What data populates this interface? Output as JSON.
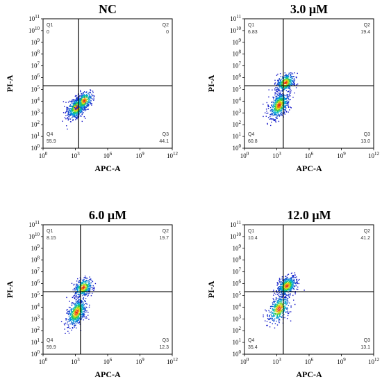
{
  "chart_data": [
    {
      "type": "scatter",
      "title": "NC",
      "xlabel": "APC-A",
      "ylabel": "PI-A",
      "x_scale": "log",
      "y_scale": "log",
      "xlim": [
        1,
        1000000000000.0
      ],
      "ylim": [
        1,
        100000000000.0
      ],
      "x_tick_labels": [
        "10^0",
        "10^3",
        "10^6",
        "10^9",
        "10^12"
      ],
      "y_tick_labels": [
        "10^0",
        "10^1",
        "10^2",
        "10^3",
        "10^4",
        "10^5",
        "10^6",
        "10^7",
        "10^8",
        "10^9",
        "10^10",
        "10^11"
      ],
      "gate": {
        "x": 2000,
        "y": 200000
      },
      "quadrants": [
        {
          "name": "Q1",
          "value": "0"
        },
        {
          "name": "Q2",
          "value": "0"
        },
        {
          "name": "Q3",
          "value": "44.1"
        },
        {
          "name": "Q4",
          "value": "55.9"
        }
      ],
      "clusters": [
        {
          "x": 1200,
          "y": 3000,
          "sx": 0.45,
          "sy": 0.45,
          "weight": 0.7
        },
        {
          "x": 6000,
          "y": 12000,
          "sx": 0.4,
          "sy": 0.4,
          "weight": 0.3
        }
      ]
    },
    {
      "type": "scatter",
      "title": "3.0 μM",
      "xlabel": "APC-A",
      "ylabel": "PI-A",
      "x_scale": "log",
      "y_scale": "log",
      "xlim": [
        1,
        1000000000000.0
      ],
      "ylim": [
        1,
        100000000000.0
      ],
      "x_tick_labels": [
        "10^0",
        "10^3",
        "10^6",
        "10^9",
        "10^12"
      ],
      "y_tick_labels": [
        "10^0",
        "10^1",
        "10^2",
        "10^3",
        "10^4",
        "10^5",
        "10^6",
        "10^7",
        "10^8",
        "10^9",
        "10^10",
        "10^11"
      ],
      "gate": {
        "x": 4000,
        "y": 200000
      },
      "quadrants": [
        {
          "name": "Q1",
          "value": "6.83"
        },
        {
          "name": "Q2",
          "value": "19.4"
        },
        {
          "name": "Q3",
          "value": "13.0"
        },
        {
          "name": "Q4",
          "value": "60.8"
        }
      ],
      "clusters": [
        {
          "x": 1500,
          "y": 5000,
          "sx": 0.45,
          "sy": 0.55,
          "weight": 0.6
        },
        {
          "x": 6000,
          "y": 400000,
          "sx": 0.45,
          "sy": 0.4,
          "weight": 0.4
        }
      ]
    },
    {
      "type": "scatter",
      "title": "6.0 μM",
      "xlabel": "APC-A",
      "ylabel": "PI-A",
      "x_scale": "log",
      "y_scale": "log",
      "xlim": [
        1,
        1000000000000.0
      ],
      "ylim": [
        1,
        100000000000.0
      ],
      "x_tick_labels": [
        "10^0",
        "10^3",
        "10^6",
        "10^9",
        "10^12"
      ],
      "y_tick_labels": [
        "10^0",
        "10^1",
        "10^2",
        "10^3",
        "10^4",
        "10^5",
        "10^6",
        "10^7",
        "10^8",
        "10^9",
        "10^10",
        "10^11"
      ],
      "gate": {
        "x": 3000,
        "y": 200000
      },
      "quadrants": [
        {
          "name": "Q1",
          "value": "8.15"
        },
        {
          "name": "Q2",
          "value": "19.7"
        },
        {
          "name": "Q3",
          "value": "12.3"
        },
        {
          "name": "Q4",
          "value": "59.9"
        }
      ],
      "clusters": [
        {
          "x": 1200,
          "y": 4000,
          "sx": 0.45,
          "sy": 0.6,
          "weight": 0.6
        },
        {
          "x": 5000,
          "y": 500000,
          "sx": 0.45,
          "sy": 0.4,
          "weight": 0.4
        }
      ]
    },
    {
      "type": "scatter",
      "title": "12.0 μM",
      "xlabel": "APC-A",
      "ylabel": "PI-A",
      "x_scale": "log",
      "y_scale": "log",
      "xlim": [
        1,
        1000000000000.0
      ],
      "ylim": [
        1,
        100000000000.0
      ],
      "x_tick_labels": [
        "10^0",
        "10^3",
        "10^6",
        "10^9",
        "10^12"
      ],
      "y_tick_labels": [
        "10^0",
        "10^1",
        "10^2",
        "10^3",
        "10^4",
        "10^5",
        "10^6",
        "10^7",
        "10^8",
        "10^9",
        "10^10",
        "10^11"
      ],
      "gate": {
        "x": 4000,
        "y": 200000
      },
      "quadrants": [
        {
          "name": "Q1",
          "value": "10.4"
        },
        {
          "name": "Q2",
          "value": "41.2"
        },
        {
          "name": "Q3",
          "value": "13.1"
        },
        {
          "name": "Q4",
          "value": "35.4"
        }
      ],
      "clusters": [
        {
          "x": 1500,
          "y": 8000,
          "sx": 0.5,
          "sy": 0.6,
          "weight": 0.45
        },
        {
          "x": 8000,
          "y": 700000,
          "sx": 0.45,
          "sy": 0.4,
          "weight": 0.55
        }
      ]
    }
  ]
}
